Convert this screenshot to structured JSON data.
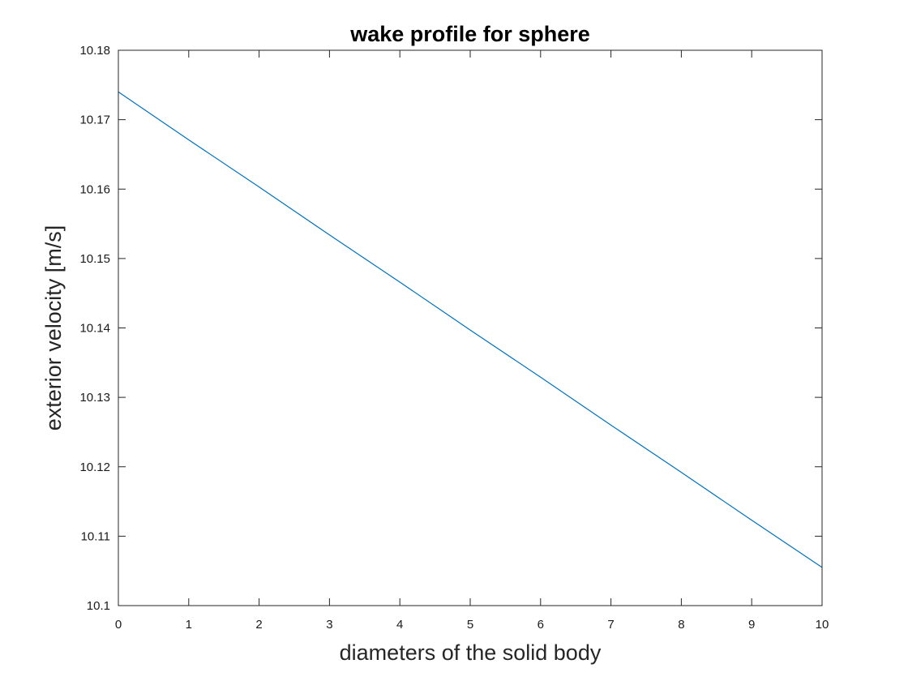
{
  "chart_data": {
    "type": "line",
    "title": "wake profile for sphere",
    "xlabel": "diameters of the solid body",
    "ylabel": "exterior velocity [m/s]",
    "xlim": [
      0,
      10
    ],
    "ylim": [
      10.1,
      10.18
    ],
    "grid": false,
    "x_ticks": [
      "0",
      "1",
      "2",
      "3",
      "4",
      "5",
      "6",
      "7",
      "8",
      "9",
      "10"
    ],
    "y_ticks": [
      "10.1",
      "10.11",
      "10.12",
      "10.13",
      "10.14",
      "10.15",
      "10.16",
      "10.17",
      "10.18"
    ],
    "series": [
      {
        "color": "#0072BD",
        "x": [
          0,
          1,
          2,
          3,
          4,
          5,
          6,
          7,
          8,
          9,
          10
        ],
        "y": [
          10.174,
          10.1671,
          10.1603,
          10.1534,
          10.1466,
          10.1397,
          10.1329,
          10.126,
          10.1192,
          10.1123,
          10.1055
        ]
      }
    ]
  }
}
